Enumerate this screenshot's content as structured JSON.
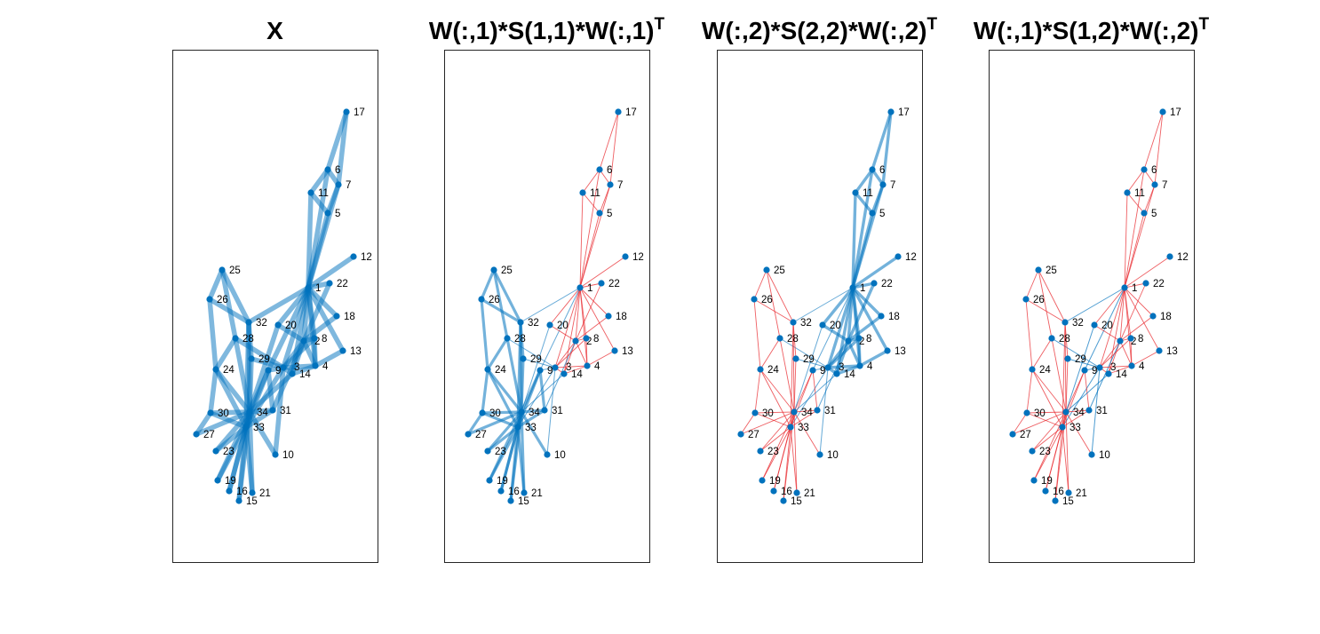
{
  "figure": {
    "panels": [
      {
        "title_main": "W(:,1)*S(1,1)*W(:,1)",
        "title_sup": "T",
        "edge_mode": "x"
      },
      {
        "title_main": "W(:,1)*S(1,1)*W(:,1)",
        "title_sup": "T",
        "edge_mode": "s11"
      },
      {
        "title_main": "W(:,2)*S(2,2)*W(:,2)",
        "title_sup": "T",
        "edge_mode": "s22"
      },
      {
        "title_main": "W(:,1)*S(1,2)*W(:,2)",
        "title_sup": "T",
        "edge_mode": "s12"
      }
    ],
    "first_title": "X"
  },
  "colors": {
    "node": "#0072BD",
    "positive_edge": "#0072BD",
    "negative_edge": "#E8282E"
  },
  "chart_data": {
    "type": "network",
    "nodes": [
      "1",
      "2",
      "3",
      "4",
      "5",
      "6",
      "7",
      "8",
      "9",
      "10",
      "11",
      "12",
      "13",
      "14",
      "15",
      "16",
      "17",
      "18",
      "19",
      "20",
      "21",
      "22",
      "23",
      "24",
      "25",
      "26",
      "27",
      "28",
      "29",
      "30",
      "31",
      "32",
      "33",
      "34"
    ],
    "community_a": [
      1,
      2,
      3,
      4,
      5,
      6,
      7,
      8,
      11,
      12,
      13,
      14,
      17,
      18,
      20,
      22
    ],
    "community_b": [
      9,
      10,
      15,
      16,
      19,
      21,
      23,
      24,
      25,
      26,
      27,
      28,
      29,
      30,
      31,
      32,
      33,
      34
    ],
    "edges": [
      [
        1,
        2
      ],
      [
        1,
        3
      ],
      [
        1,
        4
      ],
      [
        1,
        5
      ],
      [
        1,
        6
      ],
      [
        1,
        7
      ],
      [
        1,
        8
      ],
      [
        1,
        9
      ],
      [
        1,
        11
      ],
      [
        1,
        12
      ],
      [
        1,
        13
      ],
      [
        1,
        14
      ],
      [
        1,
        18
      ],
      [
        1,
        20
      ],
      [
        1,
        22
      ],
      [
        1,
        32
      ],
      [
        2,
        3
      ],
      [
        2,
        4
      ],
      [
        2,
        8
      ],
      [
        2,
        14
      ],
      [
        2,
        18
      ],
      [
        2,
        20
      ],
      [
        2,
        22
      ],
      [
        2,
        31
      ],
      [
        3,
        4
      ],
      [
        3,
        8
      ],
      [
        3,
        9
      ],
      [
        3,
        10
      ],
      [
        3,
        14
      ],
      [
        3,
        28
      ],
      [
        3,
        29
      ],
      [
        3,
        33
      ],
      [
        4,
        8
      ],
      [
        4,
        13
      ],
      [
        4,
        14
      ],
      [
        5,
        7
      ],
      [
        5,
        11
      ],
      [
        6,
        7
      ],
      [
        6,
        11
      ],
      [
        6,
        17
      ],
      [
        7,
        17
      ],
      [
        9,
        31
      ],
      [
        9,
        33
      ],
      [
        9,
        34
      ],
      [
        10,
        34
      ],
      [
        14,
        34
      ],
      [
        15,
        33
      ],
      [
        15,
        34
      ],
      [
        16,
        33
      ],
      [
        16,
        34
      ],
      [
        19,
        33
      ],
      [
        19,
        34
      ],
      [
        20,
        34
      ],
      [
        21,
        33
      ],
      [
        21,
        34
      ],
      [
        23,
        33
      ],
      [
        23,
        34
      ],
      [
        24,
        26
      ],
      [
        24,
        28
      ],
      [
        24,
        30
      ],
      [
        24,
        33
      ],
      [
        24,
        34
      ],
      [
        25,
        26
      ],
      [
        25,
        28
      ],
      [
        25,
        32
      ],
      [
        26,
        32
      ],
      [
        27,
        30
      ],
      [
        27,
        34
      ],
      [
        28,
        34
      ],
      [
        29,
        32
      ],
      [
        29,
        34
      ],
      [
        30,
        33
      ],
      [
        30,
        34
      ],
      [
        31,
        33
      ],
      [
        31,
        34
      ],
      [
        32,
        33
      ],
      [
        32,
        34
      ],
      [
        33,
        34
      ]
    ]
  }
}
